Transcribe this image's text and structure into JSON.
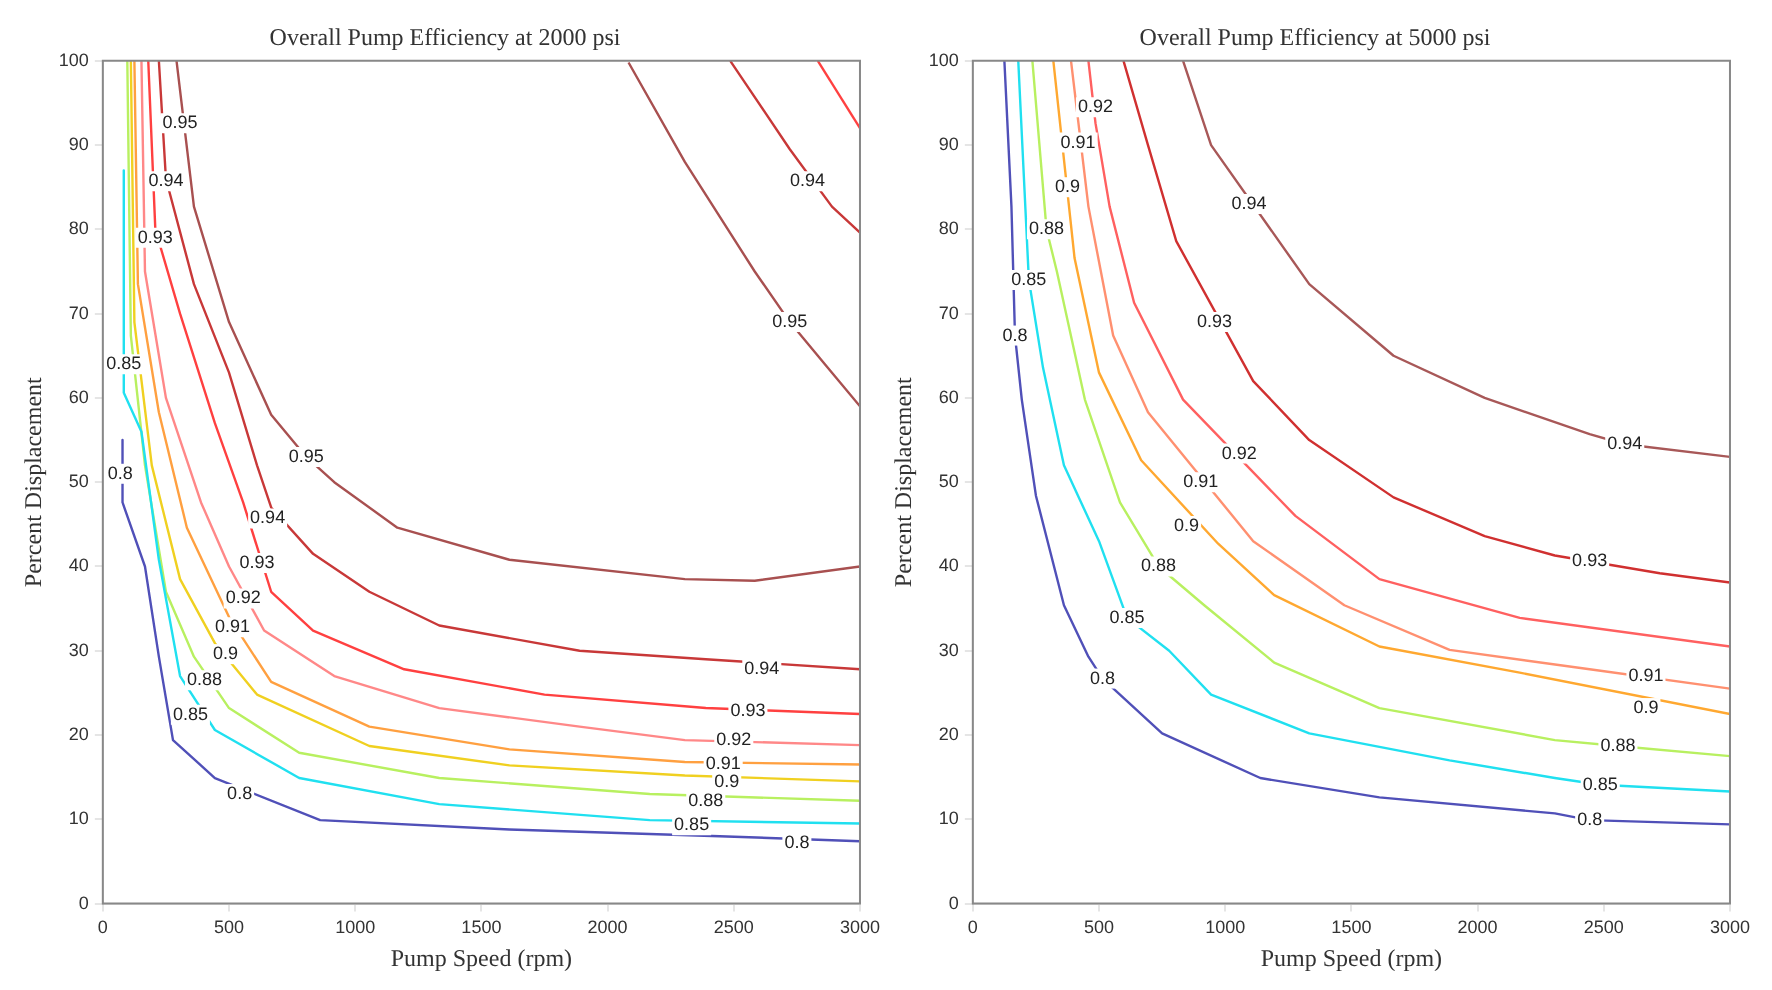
{
  "chart_data": [
    {
      "type": "line",
      "title": "Overall Pump Efficiency at 2000 psi",
      "xlabel": "Pump Speed (rpm)",
      "ylabel": "Percent Displacement",
      "xlim": [
        0,
        3000
      ],
      "ylim": [
        0,
        100
      ],
      "xticks": [
        0,
        500,
        1000,
        1500,
        2000,
        2500,
        3000
      ],
      "yticks": [
        0,
        10,
        20,
        30,
        40,
        50,
        60,
        70,
        80,
        90,
        100
      ],
      "grid": false,
      "legend": false,
      "marker": "none",
      "line_style": "solid",
      "series": [
        {
          "color": "#5050b8",
          "x": [
            78,
            78,
            167,
            222,
            278,
            444,
            861,
            1611,
            2444,
            3000
          ],
          "values": [
            55,
            47.6,
            40,
            29.3,
            19.4,
            14.9,
            9.9,
            8.8,
            8,
            7.4
          ]
        },
        {
          "color": "#20e0f0",
          "x": [
            83,
            83,
            153,
            222,
            306,
            444,
            778,
            1333,
            2167,
            3000
          ],
          "values": [
            87,
            60.6,
            56,
            40.8,
            27,
            20.6,
            14.9,
            11.8,
            9.9,
            9.5
          ]
        },
        {
          "color": "#b8f060",
          "x": [
            97,
            111,
            167,
            250,
            361,
            500,
            778,
            1333,
            2167,
            3000
          ],
          "values": [
            100,
            67.4,
            52,
            37,
            29.3,
            23.2,
            17.9,
            14.9,
            13,
            12.2
          ]
        },
        {
          "color": "#f0d020",
          "x": [
            111,
            125,
            194,
            306,
            444,
            611,
            1056,
            1611,
            2306,
            3000
          ],
          "values": [
            100,
            69,
            52,
            38.5,
            30.9,
            24.8,
            18.7,
            16.4,
            15.2,
            14.5
          ]
        },
        {
          "color": "#ffa040",
          "x": [
            125,
            139,
            222,
            333,
            500,
            667,
            1056,
            1611,
            2306,
            3000
          ],
          "values": [
            100,
            73.5,
            58.3,
            44.6,
            34,
            26.3,
            21,
            18.3,
            16.8,
            16.5
          ]
        },
        {
          "color": "#ff8888",
          "x": [
            153,
            167,
            250,
            389,
            500,
            639,
            917,
            1333,
            1889,
            2306,
            3000
          ],
          "values": [
            100,
            75,
            60,
            47.6,
            40,
            32.4,
            27,
            23.2,
            21,
            19.4,
            18.8
          ]
        },
        {
          "color": "#ff4040",
          "x": [
            180,
            208,
            306,
            444,
            556,
            667,
            833,
            1194,
            1750,
            2389,
            3000
          ],
          "values": [
            100,
            80,
            70,
            57,
            47.6,
            37,
            32.4,
            27.8,
            24.8,
            23.2,
            22.5
          ]
        },
        {
          "color": "#c83838",
          "x": [
            222,
            250,
            361,
            500,
            611,
            667,
            833,
            1056,
            1333,
            1889,
            2389,
            3000
          ],
          "values": [
            100,
            86,
            73.5,
            63,
            52,
            47,
            41.5,
            37,
            33,
            30,
            29,
            27.8
          ]
        },
        {
          "color": "#a85050",
          "x": [
            292,
            361,
            500,
            667,
            806,
            917,
            1167,
            1611,
            2306,
            2583,
            3000
          ],
          "values": [
            100,
            82.7,
            69,
            58,
            53,
            50,
            44.6,
            40.8,
            38.5,
            38.3,
            40
          ]
        },
        {
          "color": "#a85050",
          "x": [
            2083,
            2306,
            2583,
            2722,
            2861,
            3000
          ],
          "values": [
            99.8,
            88,
            75,
            69,
            64,
            59
          ]
        },
        {
          "color": "#c83838",
          "x": [
            2486,
            2722,
            2889,
            3000
          ],
          "values": [
            100,
            89.5,
            82.7,
            79.6
          ]
        },
        {
          "color": "#ff4040",
          "x": [
            2833,
            3000
          ],
          "values": [
            100,
            92
          ]
        }
      ],
      "annotations": [
        {
          "text": "0.95",
          "x": 306,
          "y": 92.6
        },
        {
          "text": "0.94",
          "x": 250,
          "y": 85.7
        },
        {
          "text": "0.93",
          "x": 208,
          "y": 79
        },
        {
          "text": "0.85",
          "x": 83,
          "y": 64
        },
        {
          "text": "0.8",
          "x": 69,
          "y": 51
        },
        {
          "text": "0.95",
          "x": 806,
          "y": 53
        },
        {
          "text": "0.94",
          "x": 653,
          "y": 45.7
        },
        {
          "text": "0.93",
          "x": 611,
          "y": 40.4
        },
        {
          "text": "0.92",
          "x": 556,
          "y": 36.2
        },
        {
          "text": "0.91",
          "x": 514,
          "y": 32.8
        },
        {
          "text": "0.9",
          "x": 486,
          "y": 29.6
        },
        {
          "text": "0.88",
          "x": 403,
          "y": 26.5
        },
        {
          "text": "0.85",
          "x": 347,
          "y": 22.4
        },
        {
          "text": "0.8",
          "x": 542,
          "y": 13
        },
        {
          "text": "0.94",
          "x": 2611,
          "y": 27.8
        },
        {
          "text": "0.93",
          "x": 2556,
          "y": 22.9
        },
        {
          "text": "0.92",
          "x": 2500,
          "y": 19.4
        },
        {
          "text": "0.91",
          "x": 2458,
          "y": 16.6
        },
        {
          "text": "0.9",
          "x": 2472,
          "y": 14.4
        },
        {
          "text": "0.88",
          "x": 2389,
          "y": 12.2
        },
        {
          "text": "0.85",
          "x": 2333,
          "y": 9.3
        },
        {
          "text": "0.8",
          "x": 2750,
          "y": 7.2
        },
        {
          "text": "0.95",
          "x": 2722,
          "y": 69
        },
        {
          "text": "0.94",
          "x": 2792,
          "y": 85.7
        }
      ]
    },
    {
      "type": "line",
      "title": "Overall Pump Efficiency at 5000 psi",
      "xlabel": "Pump Speed (rpm)",
      "ylabel": "Percent Displacement",
      "xlim": [
        0,
        3000
      ],
      "ylim": [
        0,
        100
      ],
      "xticks": [
        0,
        500,
        1000,
        1500,
        2000,
        2500,
        3000
      ],
      "yticks": [
        0,
        10,
        20,
        30,
        40,
        50,
        60,
        70,
        80,
        90,
        100
      ],
      "grid": false,
      "legend": false,
      "marker": "none",
      "line_style": "solid",
      "series": [
        {
          "color": "#5050b8",
          "x": [
            125,
            153,
            167,
            194,
            250,
            361,
            458,
            514,
            750,
            1139,
            1611,
            2306,
            2444,
            3000
          ],
          "values": [
            100,
            82.7,
            67.4,
            59.8,
            48.4,
            35.4,
            29.3,
            26.7,
            20.2,
            14.9,
            12.6,
            10.7,
            9.9,
            9.4
          ]
        },
        {
          "color": "#20e0f0",
          "x": [
            180,
            222,
            278,
            361,
            500,
            611,
            778,
            944,
            1333,
            1889,
            2306,
            2486,
            3000
          ],
          "values": [
            100,
            74,
            63.6,
            52,
            43,
            33.9,
            30,
            24.8,
            20.2,
            17,
            14.9,
            14.1,
            13.3
          ]
        },
        {
          "color": "#b8f060",
          "x": [
            236,
            292,
            333,
            444,
            583,
            736,
            917,
            1194,
            1611,
            2306,
            2556,
            3000
          ],
          "values": [
            100,
            80,
            75,
            59.8,
            47.6,
            40,
            35.4,
            28.6,
            23.2,
            19.4,
            18.7,
            17.5
          ]
        },
        {
          "color": "#ffa830",
          "x": [
            319,
            403,
            500,
            667,
            972,
            1194,
            1611,
            2167,
            3000
          ],
          "values": [
            100,
            76.6,
            63,
            52.6,
            42.7,
            36.6,
            30.5,
            27.4,
            22.5
          ]
        },
        {
          "color": "#ff9070",
          "x": [
            389,
            458,
            556,
            694,
            1111,
            1472,
            1889,
            2444,
            3000
          ],
          "values": [
            100,
            82.7,
            67.4,
            58.3,
            43,
            35.4,
            30.1,
            27.8,
            25.5
          ]
        },
        {
          "color": "#ff6060",
          "x": [
            458,
            486,
            542,
            639,
            833,
            1278,
            1611,
            2167,
            3000
          ],
          "values": [
            100,
            92.6,
            82.7,
            71.3,
            59.8,
            46,
            38.5,
            33.9,
            30.5
          ]
        },
        {
          "color": "#d03030",
          "x": [
            597,
            694,
            806,
            1111,
            1333,
            1667,
            2028,
            2306,
            2722,
            3000
          ],
          "values": [
            100,
            90,
            78.6,
            62,
            55,
            48.2,
            43.6,
            41.3,
            39.2,
            38.1
          ]
        },
        {
          "color": "#a85858",
          "x": [
            833,
            944,
            1333,
            1667,
            2028,
            2444,
            2583,
            3000
          ],
          "values": [
            100,
            90,
            73.5,
            65,
            60,
            55.7,
            54.5,
            53
          ]
        }
      ],
      "annotations": [
        {
          "text": "0.8",
          "x": 167,
          "y": 67.4
        },
        {
          "text": "0.85",
          "x": 222,
          "y": 74
        },
        {
          "text": "0.88",
          "x": 292,
          "y": 80
        },
        {
          "text": "0.9",
          "x": 375,
          "y": 85
        },
        {
          "text": "0.91",
          "x": 417,
          "y": 90.3
        },
        {
          "text": "0.92",
          "x": 486,
          "y": 94.5
        },
        {
          "text": "0.94",
          "x": 1094,
          "y": 83
        },
        {
          "text": "0.93",
          "x": 958,
          "y": 69
        },
        {
          "text": "0.92",
          "x": 1056,
          "y": 53.4
        },
        {
          "text": "0.91",
          "x": 903,
          "y": 50
        },
        {
          "text": "0.9",
          "x": 847,
          "y": 44.8
        },
        {
          "text": "0.88",
          "x": 736,
          "y": 40
        },
        {
          "text": "0.85",
          "x": 611,
          "y": 33.9
        },
        {
          "text": "0.8",
          "x": 514,
          "y": 26.7
        },
        {
          "text": "0.94",
          "x": 2583,
          "y": 54.5
        },
        {
          "text": "0.93",
          "x": 2444,
          "y": 40.6
        },
        {
          "text": "0.91",
          "x": 2667,
          "y": 27
        },
        {
          "text": "0.9",
          "x": 2667,
          "y": 23.2
        },
        {
          "text": "0.88",
          "x": 2556,
          "y": 18.7
        },
        {
          "text": "0.85",
          "x": 2486,
          "y": 14.1
        },
        {
          "text": "0.8",
          "x": 2444,
          "y": 9.9
        }
      ]
    }
  ]
}
